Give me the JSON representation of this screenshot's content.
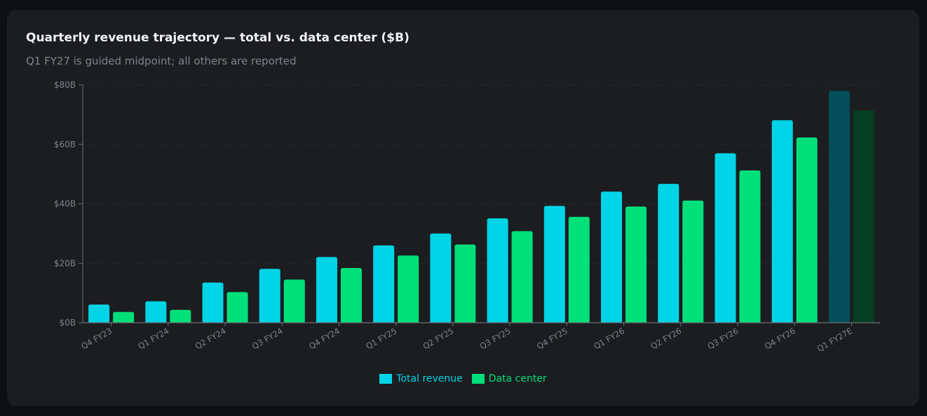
{
  "card": {
    "title": "Quarterly revenue trajectory — total vs. data center ($B)",
    "subtitle": "Q1 FY27 is guided midpoint; all others are reported"
  },
  "colors": {
    "total": "#00d4e6",
    "data_center": "#00e07a",
    "total_guided": "#034e5a",
    "data_center_guided": "#053c22",
    "axis": "#6b7178",
    "tick_text": "#7d8590",
    "grid": "#2a2e33"
  },
  "legend": {
    "total_label": "Total revenue",
    "data_center_label": "Data center"
  },
  "chart_data": {
    "type": "bar",
    "title": "Quarterly revenue trajectory — total vs. data center ($B)",
    "subtitle": "Q1 FY27 is guided midpoint; all others are reported",
    "xlabel": "",
    "ylabel": "",
    "ylim": [
      0,
      80
    ],
    "yticks": [
      0,
      20,
      40,
      60,
      80
    ],
    "ytick_labels": [
      "$0B",
      "$20B",
      "$40B",
      "$60B",
      "$80B"
    ],
    "grid": true,
    "legend_position": "bottom-center",
    "categories": [
      "Q4 FY23",
      "Q1 FY24",
      "Q2 FY24",
      "Q3 FY24",
      "Q4 FY24",
      "Q1 FY25",
      "Q2 FY25",
      "Q3 FY25",
      "Q4 FY25",
      "Q1 FY26",
      "Q2 FY26",
      "Q3 FY26",
      "Q4 FY26",
      "Q1 FY27E"
    ],
    "guided_categories": [
      "Q1 FY27E"
    ],
    "series": [
      {
        "name": "Total revenue",
        "values": [
          6.1,
          7.2,
          13.5,
          18.1,
          22.1,
          26.0,
          30.0,
          35.1,
          39.3,
          44.1,
          46.7,
          57.0,
          68.1,
          78.0
        ]
      },
      {
        "name": "Data center",
        "values": [
          3.6,
          4.3,
          10.3,
          14.5,
          18.4,
          22.6,
          26.3,
          30.8,
          35.6,
          39.1,
          41.1,
          51.2,
          62.3,
          71.5
        ]
      }
    ]
  }
}
